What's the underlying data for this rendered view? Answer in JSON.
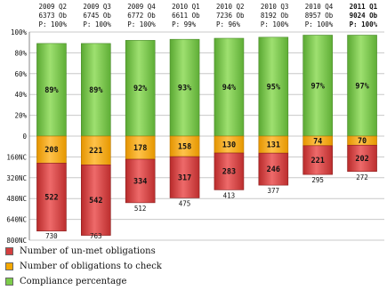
{
  "chart_data": {
    "type": "bar",
    "categories": [
      {
        "period": "2009 Q2",
        "count": "6373 Ob",
        "p": "P: 100%"
      },
      {
        "period": "2009 Q3",
        "count": "6745 Ob",
        "p": "P: 100%"
      },
      {
        "period": "2009 Q4",
        "count": "6772 Ob",
        "p": "P: 100%"
      },
      {
        "period": "2010 Q1",
        "count": "6611 Ob",
        "p": "P: 99%"
      },
      {
        "period": "2010 Q2",
        "count": "7236 Ob",
        "p": "P: 96%"
      },
      {
        "period": "2010 Q3",
        "count": "8192 Ob",
        "p": "P: 100%"
      },
      {
        "period": "2010 Q4",
        "count": "8957 Ob",
        "p": "P: 100%"
      },
      {
        "period": "2011 Q1",
        "count": "9024 Ob",
        "p": "P: 100%",
        "highlight": true
      }
    ],
    "compliance": {
      "values": [
        89,
        89,
        92,
        93,
        94,
        95,
        97,
        97
      ],
      "labels": [
        "89%",
        "89%",
        "92%",
        "93%",
        "94%",
        "95%",
        "97%",
        "97%"
      ],
      "ylim": [
        0,
        100
      ],
      "ticks": [
        "100%",
        "80%",
        "60%",
        "40%",
        "20%",
        "0"
      ]
    },
    "obligations": {
      "to_check": [
        208,
        221,
        178,
        158,
        130,
        131,
        74,
        70
      ],
      "unmet": [
        522,
        542,
        334,
        317,
        283,
        246,
        221,
        202
      ],
      "totals": [
        730,
        763,
        512,
        475,
        413,
        377,
        295,
        272
      ],
      "ylim": [
        0,
        800
      ],
      "ticks": [
        "160NC",
        "320NC",
        "480NC",
        "640NC",
        "800NC"
      ]
    },
    "colors": {
      "compliance": "#7ccc4a",
      "to_check": "#f5a800",
      "unmet": "#d43f3f"
    }
  },
  "legend": [
    {
      "label": "Number of un-met obligations",
      "color": "#d43f3f"
    },
    {
      "label": "Number of obligations to check",
      "color": "#f5a800"
    },
    {
      "label": "Compliance percentage",
      "color": "#7ccc4a"
    }
  ]
}
